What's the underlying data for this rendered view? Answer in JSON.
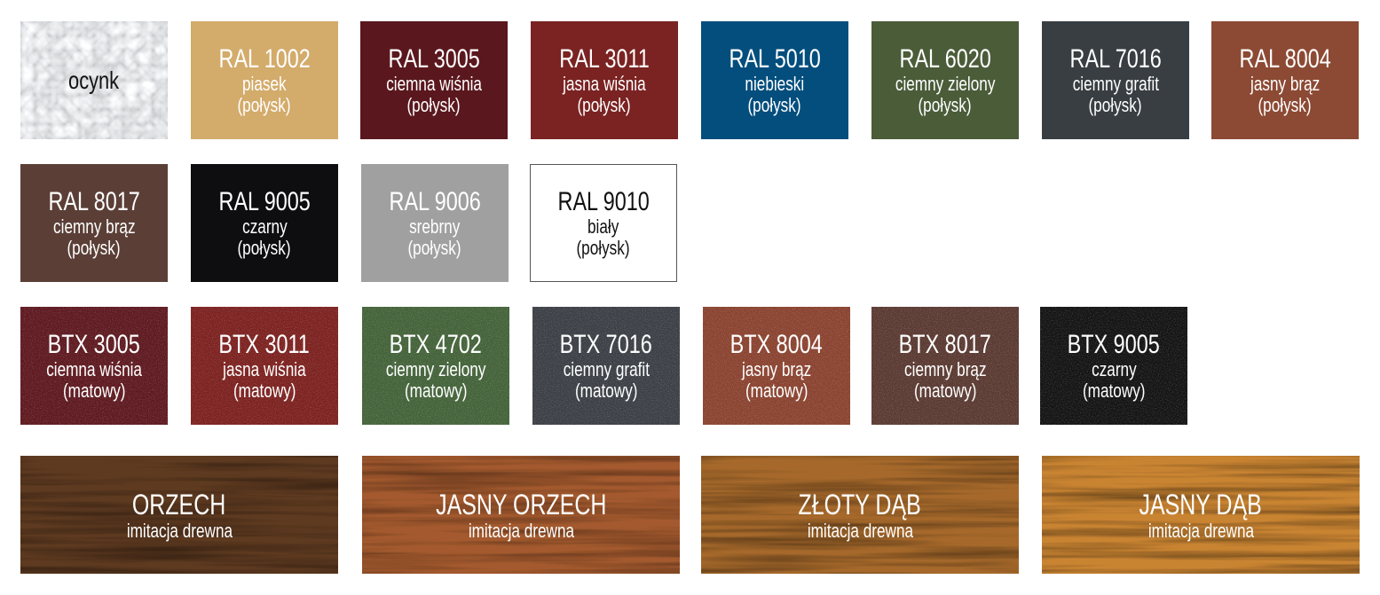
{
  "rows": [
    [
      {
        "code": "",
        "name": "ocynk",
        "finish": "",
        "color": "#c4c6c8",
        "texture": "galvanized",
        "text_color": "#111111"
      },
      {
        "code": "RAL 1002",
        "name": "piasek",
        "finish": "(połysk)",
        "color": "#d3ab6b"
      },
      {
        "code": "RAL 3005",
        "name": "ciemna wiśnia",
        "finish": "(połysk)",
        "color": "#5a181e"
      },
      {
        "code": "RAL 3011",
        "name": "jasna wiśnia",
        "finish": "(połysk)",
        "color": "#7a2322"
      },
      {
        "code": "RAL 5010",
        "name": "niebieski",
        "finish": "(połysk)",
        "color": "#044e7d"
      },
      {
        "code": "RAL 6020",
        "name": "ciemny zielony",
        "finish": "(połysk)",
        "color": "#4b5c39"
      },
      {
        "code": "RAL 7016",
        "name": "ciemny grafit",
        "finish": "(połysk)",
        "color": "#393e42"
      },
      {
        "code": "RAL 8004",
        "name": "jasny brąz",
        "finish": "(połysk)",
        "color": "#8c4a34"
      }
    ],
    [
      {
        "code": "RAL 8017",
        "name": "ciemny brąz",
        "finish": "(połysk)",
        "color": "#5b3f37"
      },
      {
        "code": "RAL 9005",
        "name": "czarny",
        "finish": "(połysk)",
        "color": "#0e0e10"
      },
      {
        "code": "RAL 9006",
        "name": "srebrny",
        "finish": "(połysk)",
        "color": "#a0a0a0"
      },
      {
        "code": "RAL 9010",
        "name": "biały",
        "finish": "(połysk)",
        "color": "#ffffff",
        "text_color": "#111111",
        "border": "#555555"
      }
    ],
    [
      {
        "code": "BTX 3005",
        "name": "ciemna wiśnia",
        "finish": "(matowy)",
        "color": "#5e1a20",
        "texture": "grain"
      },
      {
        "code": "BTX 3011",
        "name": "jasna wiśnia",
        "finish": "(matowy)",
        "color": "#7c2220",
        "texture": "grain"
      },
      {
        "code": "BTX 4702",
        "name": "ciemny zielony",
        "finish": "(matowy)",
        "color": "#44633a",
        "texture": "grain"
      },
      {
        "code": "BTX 7016",
        "name": "ciemny grafit",
        "finish": "(matowy)",
        "color": "#3c4046",
        "texture": "grain"
      },
      {
        "code": "BTX 8004",
        "name": "jasny brąz",
        "finish": "(matowy)",
        "color": "#8a4330",
        "texture": "grain"
      },
      {
        "code": "BTX 8017",
        "name": "ciemny brąz",
        "finish": "(matowy)",
        "color": "#5a3a32",
        "texture": "grain"
      },
      {
        "code": "BTX 9005",
        "name": "czarny",
        "finish": "(matowy)",
        "color": "#141414",
        "texture": "grain"
      }
    ],
    [
      {
        "code": "ORZECH",
        "name": "imitacja drewna",
        "color": "#5e3a20",
        "grain_color": "#3e2412",
        "texture": "wood"
      },
      {
        "code": "JASNY ORZECH",
        "name": "imitacja drewna",
        "color": "#a45a2e",
        "grain_color": "#7a3a1a",
        "texture": "wood"
      },
      {
        "code": "ZŁOTY DĄB",
        "name": "imitacja drewna",
        "color": "#a6692b",
        "grain_color": "#7a4618",
        "texture": "wood"
      },
      {
        "code": "JASNY DĄB",
        "name": "imitacja drewna",
        "color": "#c98432",
        "grain_color": "#a4621c",
        "texture": "wood"
      }
    ]
  ]
}
